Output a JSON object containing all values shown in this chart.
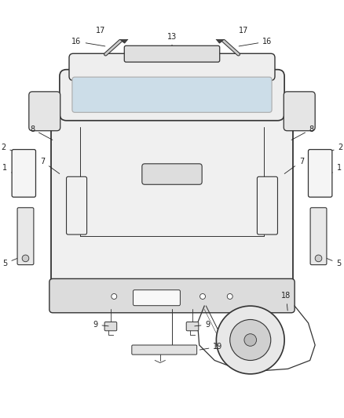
{
  "bg_color": "#ffffff",
  "line_color": "#333333",
  "text_color": "#222222",
  "fig_width": 4.38,
  "fig_height": 5.33
}
